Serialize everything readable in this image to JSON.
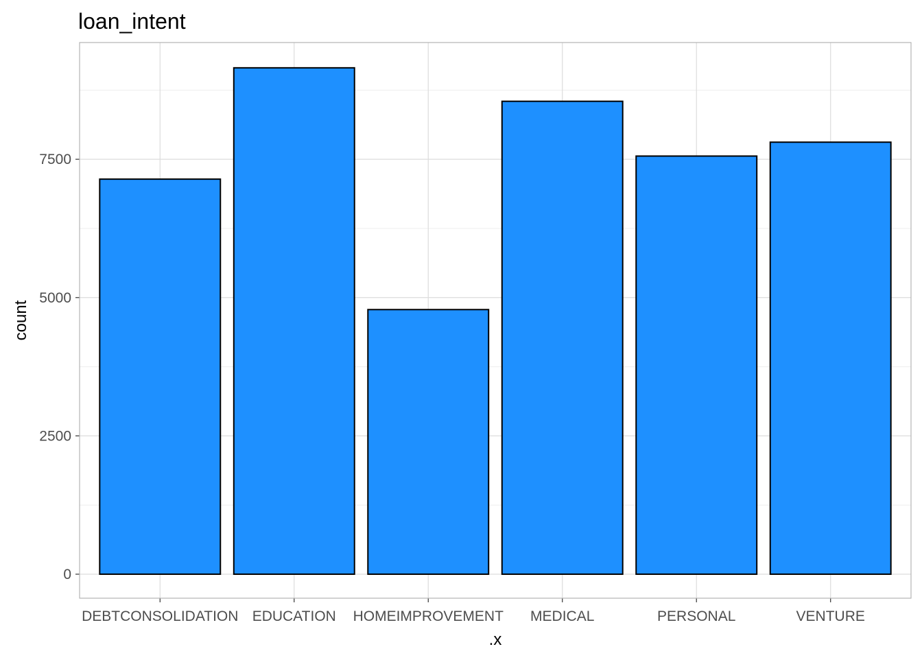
{
  "chart_data": {
    "type": "bar",
    "title": "loan_intent",
    "xlabel": ".x",
    "ylabel": "count",
    "categories": [
      "DEBTCONSOLIDATION",
      "EDUCATION",
      "HOMEIMPROVEMENT",
      "MEDICAL",
      "PERSONAL",
      "VENTURE"
    ],
    "values": [
      7141,
      9153,
      4783,
      8548,
      7558,
      7809
    ],
    "ylim": [
      0,
      9610
    ],
    "yticks": [
      0,
      2500,
      5000,
      7500
    ],
    "ytick_labels": [
      "0",
      "2500",
      "5000",
      "7500"
    ],
    "grid": true,
    "legend": "none",
    "colors": {
      "bar_fill": "#1E90FF",
      "bar_stroke": "#000000",
      "grid_major": "#dcdcdc",
      "grid_minor": "#eeeeee",
      "panel_border": "#b3b3b3",
      "tick_text": "#4d4d4d"
    }
  }
}
